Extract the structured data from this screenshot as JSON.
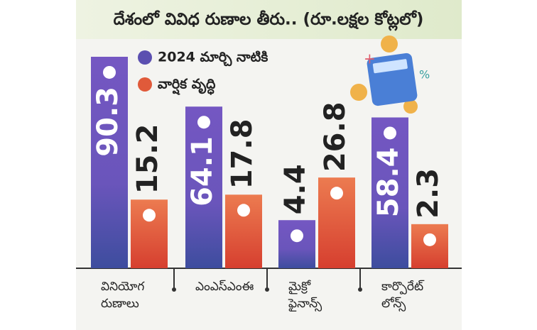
{
  "chart_data": {
    "type": "bar",
    "title": "దేశంలో వివిధ రుణాల తీరు.. (రూ.లక్షల కోట్లలో)",
    "categories": [
      "వినియోగ రుణాలు",
      "ఎంఎస్ఎంఈ",
      "మైక్రో ఫైనాన్స్",
      "కార్పొరేట్ లోన్స్"
    ],
    "series": [
      {
        "name": "2024 మార్చి నాటికి",
        "color": "#5b4fb0",
        "values": [
          90.3,
          64.1,
          4.4,
          58.4
        ]
      },
      {
        "name": "వార్షిక వృద్ధి",
        "color": "#e05a3a",
        "values": [
          15.2,
          17.8,
          26.8,
          2.3
        ]
      }
    ]
  }
}
